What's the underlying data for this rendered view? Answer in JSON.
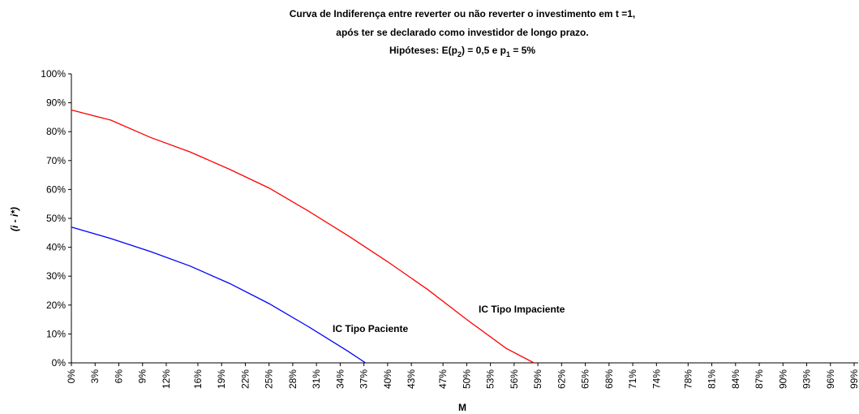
{
  "chart_data": {
    "type": "line",
    "title_lines": [
      "Curva de Indiferença entre reverter ou não reverter o investimento em t =1,",
      "após ter se declarado como investidor de longo prazo."
    ],
    "subtitle_parts": [
      "Hipóteses: E(p",
      "2",
      ") = 0,5 e p",
      "1",
      " = 5%"
    ],
    "x_label": "M",
    "y_label": "(i - i*)",
    "xlim": [
      0,
      99
    ],
    "ylim": [
      0,
      100
    ],
    "xticks": [
      {
        "value": 0,
        "label": "0%"
      },
      {
        "value": 3,
        "label": "3%"
      },
      {
        "value": 6,
        "label": "6%"
      },
      {
        "value": 9,
        "label": "9%"
      },
      {
        "value": 12,
        "label": "12%"
      },
      {
        "value": 16,
        "label": "16%"
      },
      {
        "value": 19,
        "label": "19%"
      },
      {
        "value": 22,
        "label": "22%"
      },
      {
        "value": 25,
        "label": "25%"
      },
      {
        "value": 28,
        "label": "28%"
      },
      {
        "value": 31,
        "label": "31%"
      },
      {
        "value": 34,
        "label": "34%"
      },
      {
        "value": 37,
        "label": "37%"
      },
      {
        "value": 40,
        "label": "40%"
      },
      {
        "value": 43,
        "label": "43%"
      },
      {
        "value": 47,
        "label": "47%"
      },
      {
        "value": 50,
        "label": "50%"
      },
      {
        "value": 53,
        "label": "53%"
      },
      {
        "value": 56,
        "label": "56%"
      },
      {
        "value": 59,
        "label": "59%"
      },
      {
        "value": 62,
        "label": "62%"
      },
      {
        "value": 65,
        "label": "65%"
      },
      {
        "value": 68,
        "label": "68%"
      },
      {
        "value": 71,
        "label": "71%"
      },
      {
        "value": 74,
        "label": "74%"
      },
      {
        "value": 78,
        "label": "78%"
      },
      {
        "value": 81,
        "label": "81%"
      },
      {
        "value": 84,
        "label": "84%"
      },
      {
        "value": 87,
        "label": "87%"
      },
      {
        "value": 90,
        "label": "90%"
      },
      {
        "value": 93,
        "label": "93%"
      },
      {
        "value": 96,
        "label": "96%"
      },
      {
        "value": 99,
        "label": "99%"
      }
    ],
    "yticks": [
      {
        "value": 0,
        "label": "0%"
      },
      {
        "value": 10,
        "label": "10%"
      },
      {
        "value": 20,
        "label": "20%"
      },
      {
        "value": 30,
        "label": "30%"
      },
      {
        "value": 40,
        "label": "40%"
      },
      {
        "value": 50,
        "label": "50%"
      },
      {
        "value": 60,
        "label": "60%"
      },
      {
        "value": 70,
        "label": "70%"
      },
      {
        "value": 80,
        "label": "80%"
      },
      {
        "value": 90,
        "label": "90%"
      },
      {
        "value": 100,
        "label": "100%"
      }
    ],
    "grid": false,
    "series": [
      {
        "name": "IC Tipo Paciente",
        "color": "#0000ff",
        "x": [
          0,
          5,
          10,
          15,
          20,
          25,
          30,
          35,
          37.2
        ],
        "values": [
          47,
          43,
          38.5,
          33.5,
          27.5,
          20.5,
          12.5,
          4,
          0
        ]
      },
      {
        "name": "IC Tipo Impaciente",
        "color": "#ff0000",
        "x": [
          0,
          5,
          10,
          15,
          20,
          25,
          30,
          35,
          40,
          45,
          50,
          55,
          58.5
        ],
        "values": [
          87.5,
          84,
          78,
          73,
          67,
          60.5,
          52.5,
          44,
          35,
          25.5,
          15,
          5,
          0
        ]
      }
    ]
  }
}
